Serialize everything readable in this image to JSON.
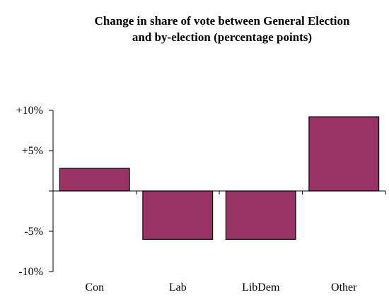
{
  "chart_data": {
    "type": "bar",
    "title_line1": "Change in share of vote between General Election",
    "title_line2": "and by-election (percentage points)",
    "categories": [
      "Con",
      "Lab",
      "LibDem",
      "Other"
    ],
    "values": [
      2.8,
      -6.0,
      -6.0,
      9.2
    ],
    "ylim": [
      -10,
      10
    ],
    "yticks": [
      10,
      5,
      -5,
      -10
    ],
    "ytick_labels": [
      "+10%",
      "+5%",
      "-5%",
      "-10%"
    ],
    "xlabel": "",
    "ylabel": "",
    "grid": false,
    "legend": "none",
    "bar_color": "#993366",
    "bar_edge_color": "#000000"
  }
}
